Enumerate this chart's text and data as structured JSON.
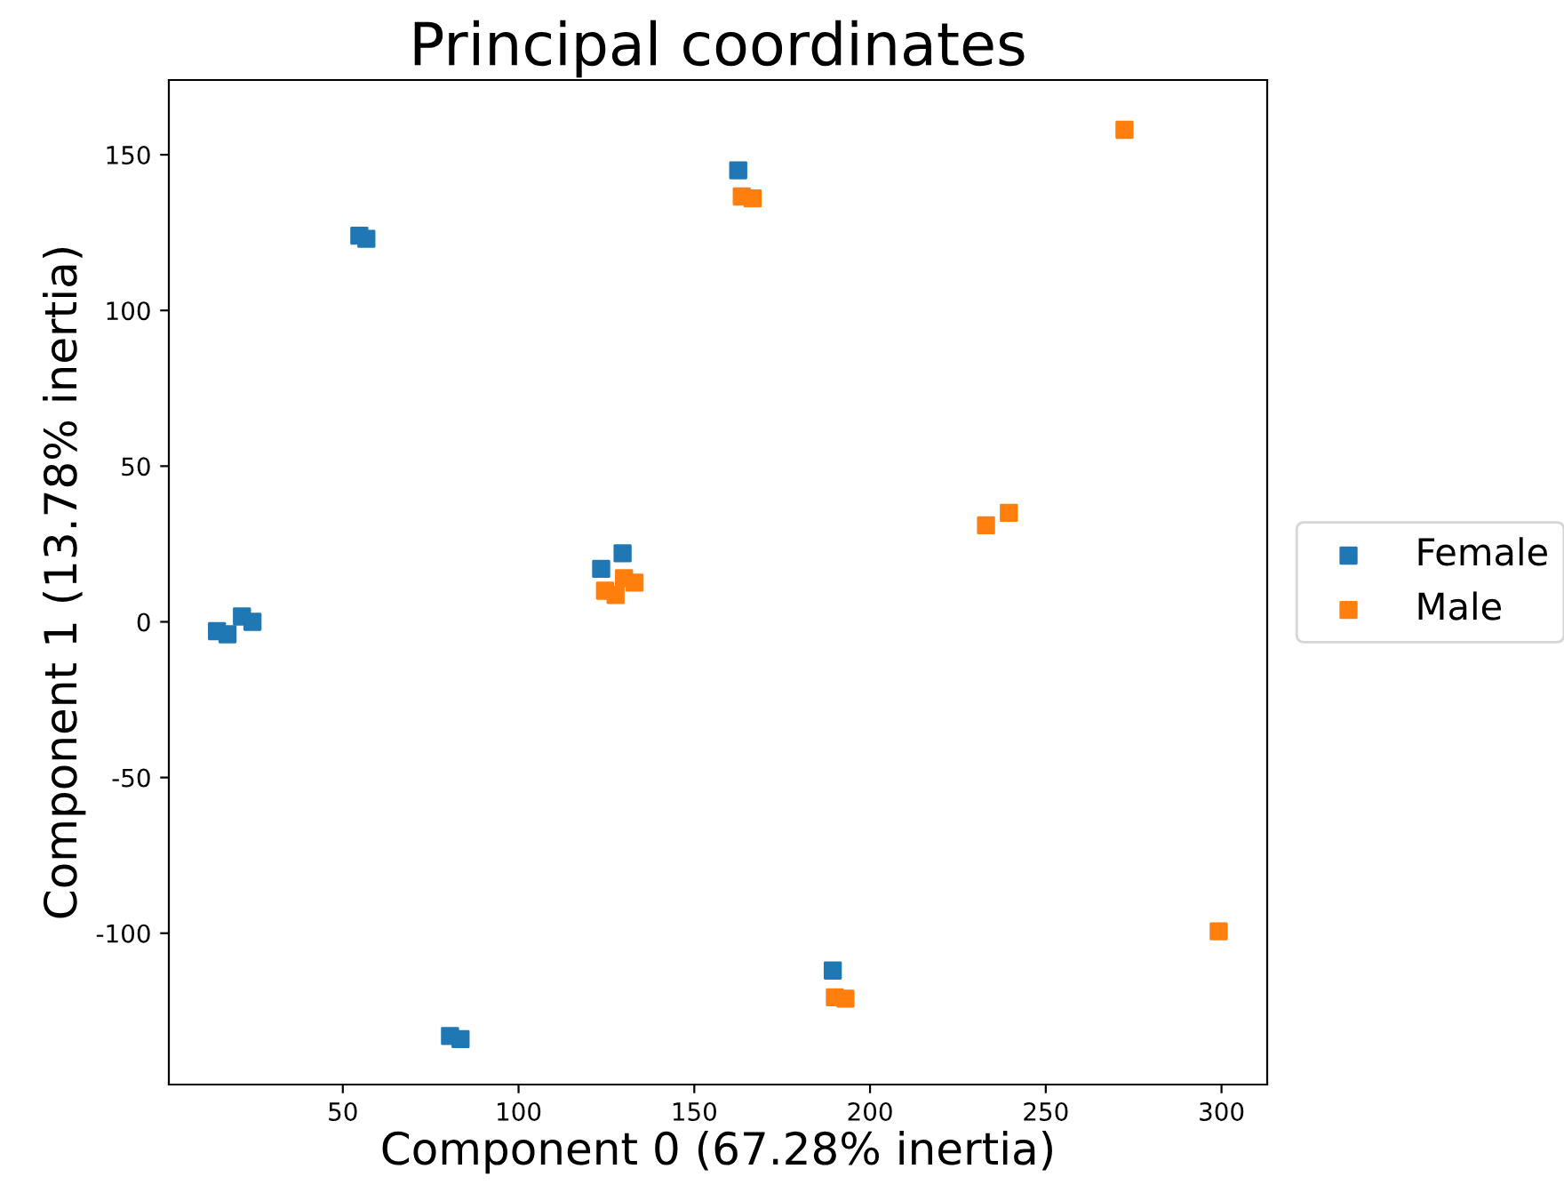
{
  "chart_data": {
    "type": "scatter",
    "title": "Principal coordinates",
    "xlabel": "Component 0 (67.28% inertia)",
    "ylabel": "Component 1 (13.78% inertia)",
    "xlim": [
      0.5,
      313
    ],
    "ylim": [
      -148.6,
      174
    ],
    "xticks": [
      50,
      100,
      150,
      200,
      250,
      300
    ],
    "yticks": [
      -100,
      -50,
      0,
      50,
      100,
      150
    ],
    "marker": "square",
    "legend": "right",
    "grid": false,
    "series": [
      {
        "name": "Female",
        "color": "#1f77b4",
        "x": [
          54.7,
          56.7,
          162.5,
          14.2,
          17.2,
          21.3,
          24.3,
          123.5,
          129.6,
          80.5,
          83.5,
          189.4
        ],
        "values": [
          124,
          123,
          145,
          -3,
          -4,
          1.7,
          0,
          17,
          22,
          -133,
          -134,
          -112
        ]
      },
      {
        "name": "Male",
        "color": "#ff7f0e",
        "x": [
          272.4,
          163.5,
          166.6,
          233,
          239.5,
          124.6,
          127.6,
          130,
          133,
          190,
          193,
          299.2
        ],
        "values": [
          158,
          136.6,
          136,
          31,
          35,
          10,
          8.6,
          14,
          12.6,
          -120.6,
          -121,
          -99.4
        ]
      }
    ]
  }
}
